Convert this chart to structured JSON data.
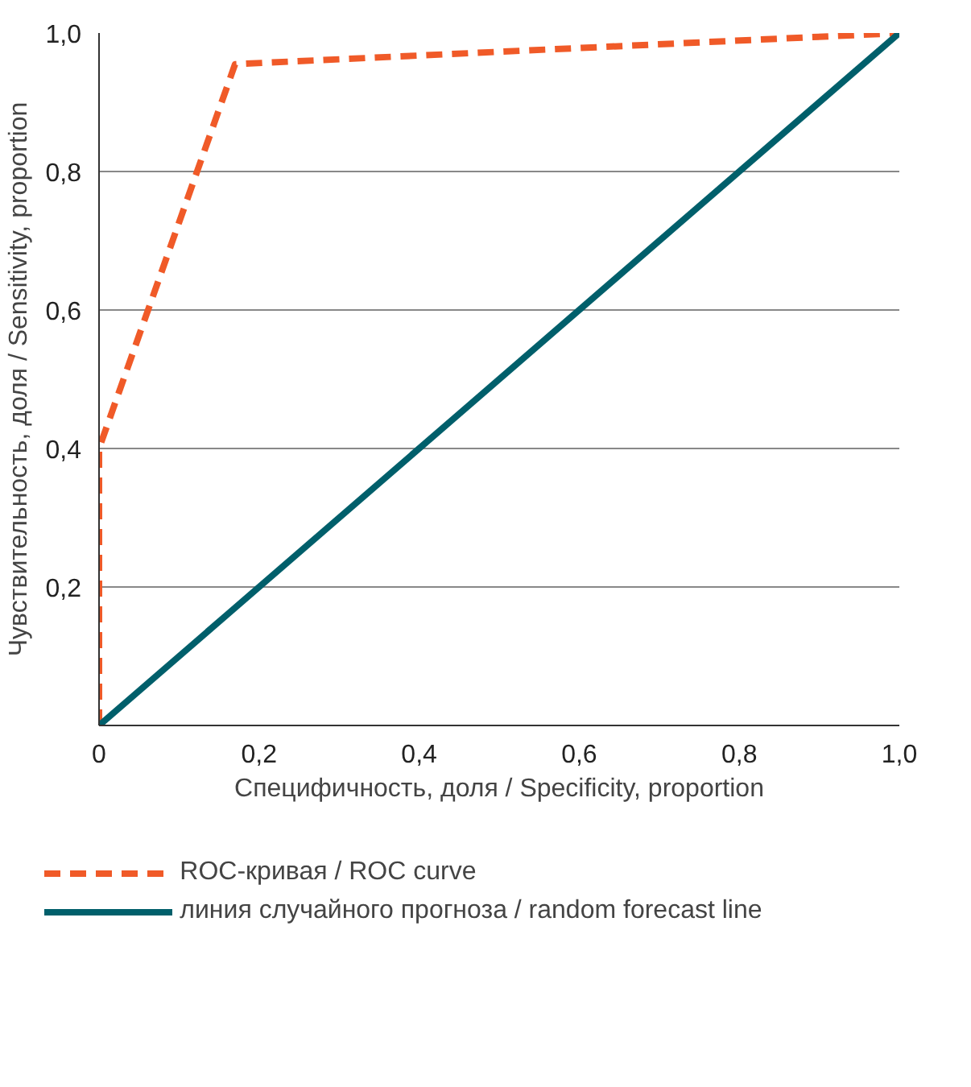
{
  "chart_data": {
    "type": "line",
    "xlabel": "Специфичность, доля / Specificity, proportion",
    "ylabel": "Чувствительность, доля / Sensitivity, proportion",
    "xlim": [
      0,
      1.0
    ],
    "ylim": [
      0,
      1.0
    ],
    "xticks": [
      0,
      {
        "value": 0.2,
        "label": "0,2"
      },
      {
        "value": 0.4,
        "label": "0,4"
      },
      {
        "value": 0.6,
        "label": "0,6"
      },
      {
        "value": 0.8,
        "label": "0,8"
      },
      {
        "value": 1.0,
        "label": "1,0"
      }
    ],
    "yticks": [
      {
        "value": 0,
        "label": null
      },
      {
        "value": 0.2,
        "label": "0,2"
      },
      {
        "value": 0.4,
        "label": "0,4"
      },
      {
        "value": 0.6,
        "label": "0,6"
      },
      {
        "value": 0.8,
        "label": "0,8"
      },
      {
        "value": 1.0,
        "label": "1,0"
      }
    ],
    "grid": "y",
    "legend": "bottom",
    "series": [
      {
        "name": "ROC-кривая / ROC curve",
        "color": "#f05a28",
        "line_style": "dashed",
        "x": [
          0,
          0,
          0.17,
          1.0
        ],
        "values": [
          0,
          0.4,
          0.955,
          1.0
        ]
      },
      {
        "name": "линия случайного прогноза / random forecast line",
        "color": "#005f6b",
        "line_style": "solid",
        "x": [
          0,
          1.0
        ],
        "values": [
          0,
          1.0
        ]
      }
    ]
  }
}
